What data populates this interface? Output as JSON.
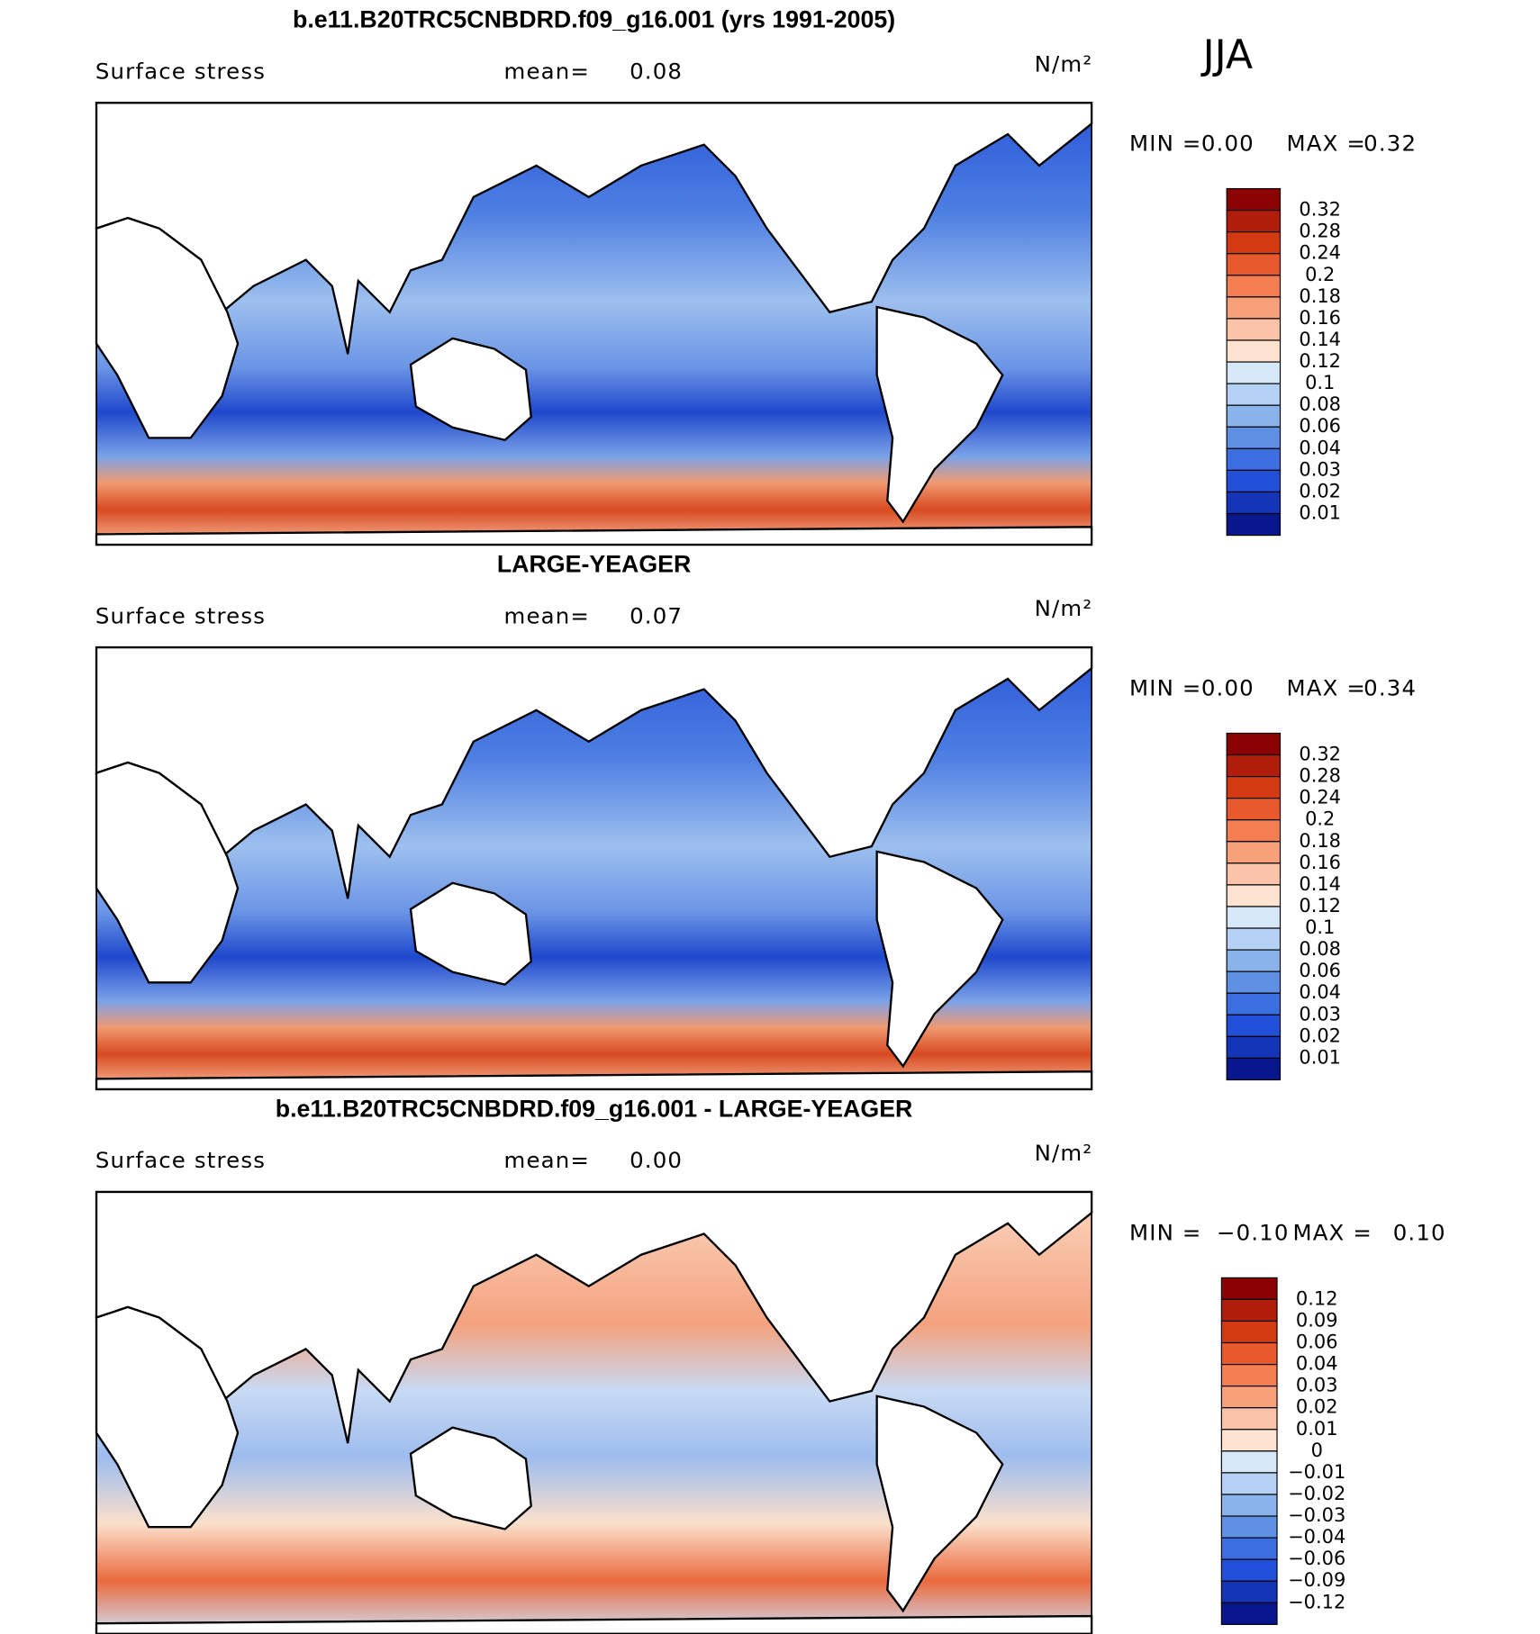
{
  "season": "JJA",
  "panels": [
    {
      "title": "b.e11.B20TRC5CNBDRD.f09_g16.001 (yrs 1991-2005)",
      "variable": "Surface stress",
      "mean_label": "mean=",
      "mean": "0.08",
      "units": "N/m²",
      "min_label": "MIN =",
      "min": "0.00",
      "max_label": "MAX =",
      "max": "0.32",
      "colorbar_labels": [
        "0.32",
        "0.28",
        "0.24",
        "0.2",
        "0.18",
        "0.16",
        "0.14",
        "0.12",
        "0.1",
        "0.08",
        "0.06",
        "0.04",
        "0.03",
        "0.02",
        "0.01"
      ]
    },
    {
      "title": "LARGE-YEAGER",
      "variable": "Surface stress",
      "mean_label": "mean=",
      "mean": "0.07",
      "units": "N/m²",
      "min_label": "MIN =",
      "min": "0.00",
      "max_label": "MAX =",
      "max": "0.34",
      "colorbar_labels": [
        "0.32",
        "0.28",
        "0.24",
        "0.2",
        "0.18",
        "0.16",
        "0.14",
        "0.12",
        "0.1",
        "0.08",
        "0.06",
        "0.04",
        "0.03",
        "0.02",
        "0.01"
      ]
    },
    {
      "title": "b.e11.B20TRC5CNBDRD.f09_g16.001 - LARGE-YEAGER",
      "variable": "Surface stress",
      "mean_label": "mean=",
      "mean": "0.00",
      "units": "N/m²",
      "min_label": "MIN =",
      "min": "−0.10",
      "max_label": "MAX =",
      "max": "0.10",
      "colorbar_labels": [
        "0.12",
        "0.09",
        "0.06",
        "0.04",
        "0.03",
        "0.02",
        "0.01",
        "0",
        "−0.01",
        "−0.02",
        "−0.03",
        "−0.04",
        "−0.06",
        "−0.09",
        "−0.12"
      ]
    }
  ]
}
